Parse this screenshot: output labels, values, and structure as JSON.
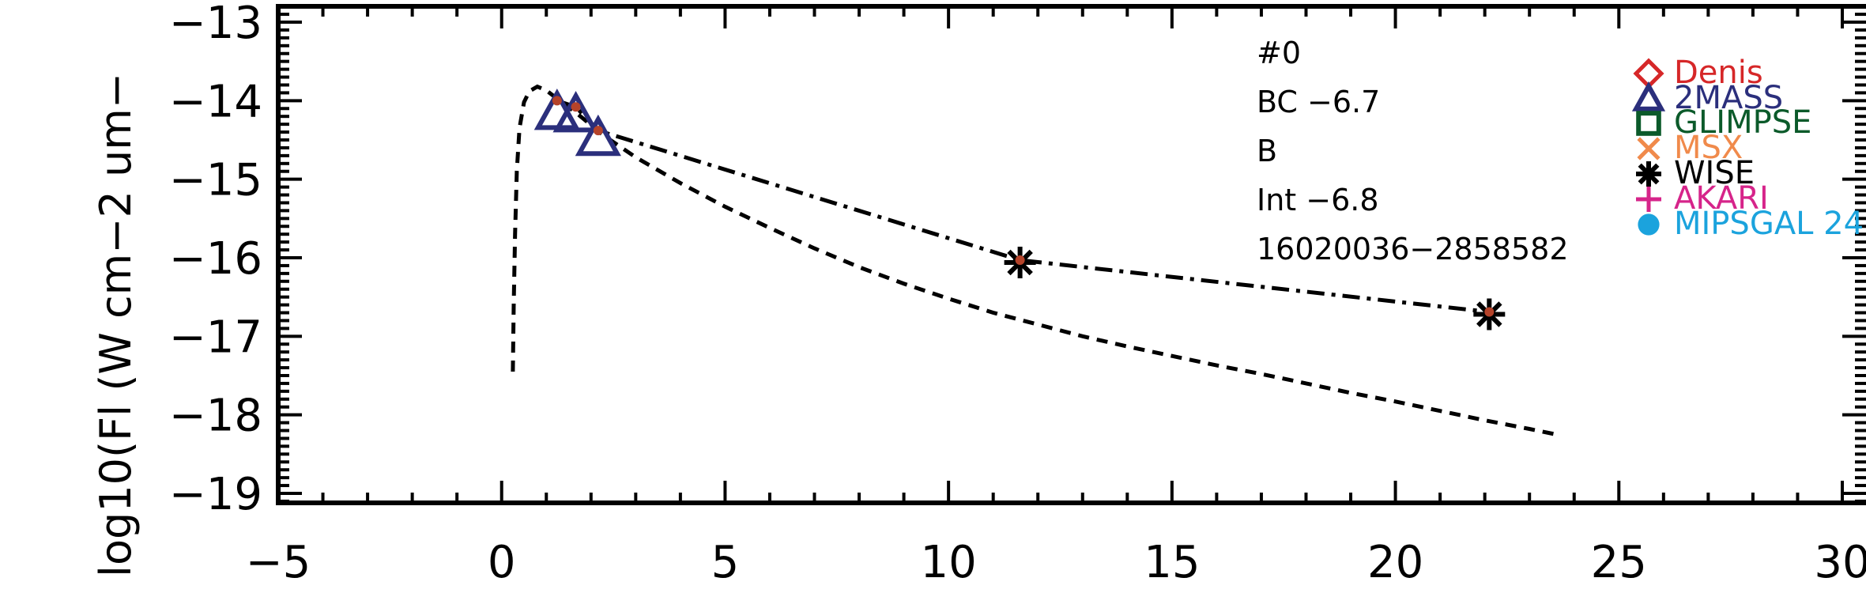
{
  "chart_data": {
    "type": "scatter",
    "title": "",
    "xlabel": "",
    "ylabel": "log10(Fl (W cm−2 um−",
    "xlim": [
      -5,
      30
    ],
    "ylim": [
      -19.2,
      -12.8
    ],
    "x_ticks": [
      "−5",
      "0",
      "5",
      "10",
      "15",
      "20",
      "25",
      "30"
    ],
    "y_ticks": [
      "−13",
      "−14",
      "−15",
      "−16",
      "−17",
      "−18",
      "−19"
    ],
    "x_tick_values": [
      -5,
      0,
      5,
      10,
      15,
      20,
      25,
      30
    ],
    "y_tick_values": [
      -13,
      -14,
      -15,
      -16,
      -17,
      -18,
      -19
    ],
    "annotations": [
      "#0",
      "BC  −6.7",
      "B",
      "Int  −6.8",
      "16020036−2858582"
    ],
    "legend_position": "right",
    "legend": [
      {
        "name": "Denis",
        "color": "#d62728",
        "marker": "diamond"
      },
      {
        "name": "2MASS",
        "color": "#2b2f7c",
        "marker": "triangle"
      },
      {
        "name": "GLIMPSE",
        "color": "#0b5a2a",
        "marker": "square"
      },
      {
        "name": "MSX",
        "color": "#f08a4b",
        "marker": "x"
      },
      {
        "name": "WISE",
        "color": "#000000",
        "marker": "asterisk"
      },
      {
        "name": "AKARI",
        "color": "#d6248a",
        "marker": "plus"
      },
      {
        "name": "MIPSGAL 24",
        "color": "#1ba3dd",
        "marker": "circle"
      }
    ],
    "series": [
      {
        "marker": "triangle",
        "color": "#2b2f7c",
        "points": [
          [
            1.24,
            -14.15
          ],
          [
            1.66,
            -14.18
          ],
          [
            2.16,
            -14.48
          ]
        ]
      },
      {
        "marker": "asterisk",
        "color": "#000000",
        "points": [
          [
            11.6,
            -16.06
          ],
          [
            22.1,
            -16.72
          ]
        ]
      },
      {
        "marker": "dot",
        "color": "#b5432a",
        "points": [
          [
            1.24,
            -14.0
          ],
          [
            1.66,
            -14.08
          ],
          [
            2.16,
            -14.38
          ],
          [
            11.6,
            -16.03
          ],
          [
            22.1,
            -16.69
          ]
        ]
      }
    ],
    "curves": [
      {
        "style": "dashed",
        "color": "#000000",
        "points": [
          [
            0.25,
            -17.45
          ],
          [
            0.27,
            -16.6
          ],
          [
            0.3,
            -15.7
          ],
          [
            0.34,
            -14.9
          ],
          [
            0.4,
            -14.35
          ],
          [
            0.5,
            -14.02
          ],
          [
            0.62,
            -13.88
          ],
          [
            0.8,
            -13.82
          ],
          [
            1.0,
            -13.87
          ],
          [
            1.3,
            -14.0
          ],
          [
            1.7,
            -14.17
          ],
          [
            2.3,
            -14.45
          ],
          [
            3.0,
            -14.72
          ],
          [
            4.0,
            -15.05
          ],
          [
            5.0,
            -15.35
          ],
          [
            6.0,
            -15.62
          ],
          [
            7.0,
            -15.88
          ],
          [
            8.0,
            -16.12
          ],
          [
            9.0,
            -16.33
          ],
          [
            10.0,
            -16.52
          ],
          [
            11.0,
            -16.7
          ],
          [
            12.0,
            -16.85
          ],
          [
            13.0,
            -17.0
          ],
          [
            14.0,
            -17.13
          ],
          [
            15.0,
            -17.25
          ],
          [
            16.0,
            -17.37
          ],
          [
            17.0,
            -17.48
          ],
          [
            18.0,
            -17.6
          ],
          [
            19.0,
            -17.72
          ],
          [
            20.0,
            -17.83
          ],
          [
            21.0,
            -17.95
          ],
          [
            22.0,
            -18.07
          ],
          [
            23.0,
            -18.18
          ],
          [
            23.6,
            -18.25
          ]
        ]
      },
      {
        "style": "dashdot",
        "color": "#000000",
        "points": [
          [
            1.24,
            -14.0
          ],
          [
            1.66,
            -14.08
          ],
          [
            2.16,
            -14.38
          ],
          [
            11.6,
            -16.03
          ],
          [
            22.1,
            -16.69
          ]
        ]
      }
    ]
  }
}
